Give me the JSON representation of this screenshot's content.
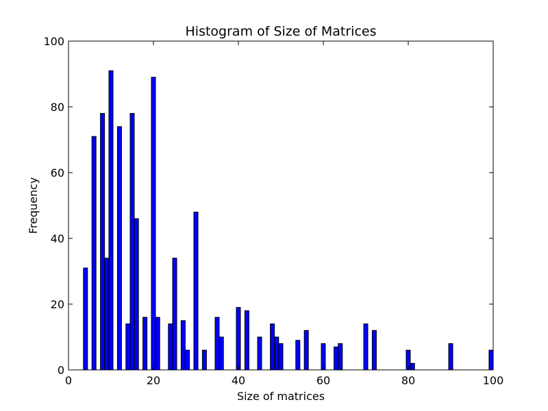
{
  "chart_data": {
    "type": "bar",
    "title": "Histogram of Size of Matrices",
    "xlabel": "Size of matrices",
    "ylabel": "Frequency",
    "xlim": [
      0,
      100
    ],
    "ylim": [
      0,
      100
    ],
    "grid": false,
    "bar_color": "#0000ff",
    "bar_edge_color": "#000000",
    "xticks": [
      "0",
      "20",
      "40",
      "60",
      "80",
      "100"
    ],
    "yticks": [
      "0",
      "20",
      "40",
      "60",
      "80",
      "100"
    ],
    "bins": [
      {
        "x": 4,
        "value": 31
      },
      {
        "x": 6,
        "value": 71
      },
      {
        "x": 8,
        "value": 78
      },
      {
        "x": 9,
        "value": 34
      },
      {
        "x": 10,
        "value": 91
      },
      {
        "x": 12,
        "value": 74
      },
      {
        "x": 14,
        "value": 14
      },
      {
        "x": 15,
        "value": 78
      },
      {
        "x": 16,
        "value": 46
      },
      {
        "x": 18,
        "value": 16
      },
      {
        "x": 20,
        "value": 89
      },
      {
        "x": 21,
        "value": 16
      },
      {
        "x": 24,
        "value": 14
      },
      {
        "x": 25,
        "value": 34
      },
      {
        "x": 27,
        "value": 15
      },
      {
        "x": 28,
        "value": 6
      },
      {
        "x": 30,
        "value": 48
      },
      {
        "x": 32,
        "value": 6
      },
      {
        "x": 35,
        "value": 16
      },
      {
        "x": 36,
        "value": 10
      },
      {
        "x": 40,
        "value": 19
      },
      {
        "x": 42,
        "value": 18
      },
      {
        "x": 45,
        "value": 10
      },
      {
        "x": 48,
        "value": 14
      },
      {
        "x": 49,
        "value": 10
      },
      {
        "x": 50,
        "value": 8
      },
      {
        "x": 54,
        "value": 9
      },
      {
        "x": 56,
        "value": 12
      },
      {
        "x": 60,
        "value": 8
      },
      {
        "x": 63,
        "value": 7
      },
      {
        "x": 64,
        "value": 8
      },
      {
        "x": 70,
        "value": 14
      },
      {
        "x": 72,
        "value": 12
      },
      {
        "x": 80,
        "value": 6
      },
      {
        "x": 81,
        "value": 2
      },
      {
        "x": 90,
        "value": 8
      },
      {
        "x": 99.5,
        "value": 6
      }
    ]
  }
}
